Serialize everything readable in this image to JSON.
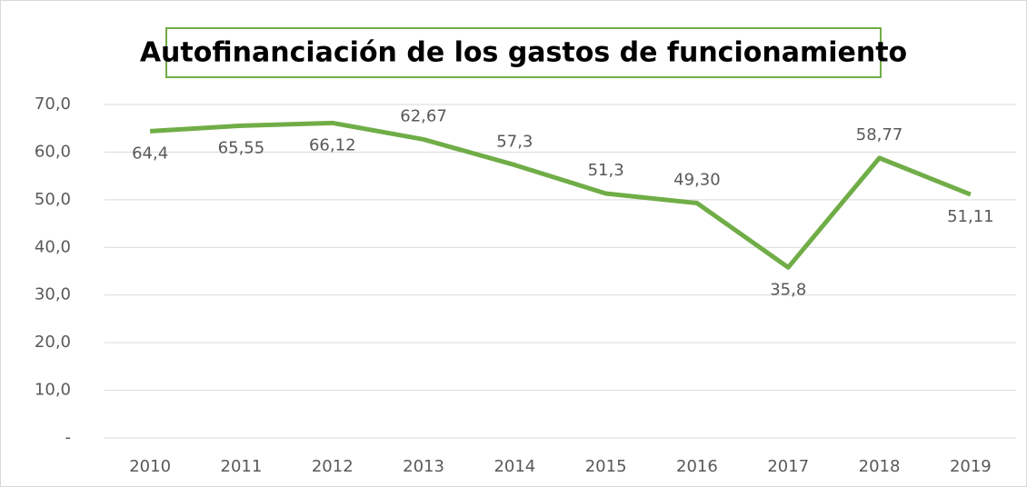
{
  "chart_data": {
    "type": "line",
    "title": "Autofinanciación de los gastos de funcionamiento",
    "categories": [
      "2010",
      "2011",
      "2012",
      "2013",
      "2014",
      "2015",
      "2016",
      "2017",
      "2018",
      "2019"
    ],
    "values": [
      64.4,
      65.55,
      66.12,
      62.67,
      57.3,
      51.3,
      49.3,
      35.8,
      58.77,
      51.11
    ],
    "value_labels": [
      "64,4",
      "65,55",
      "66,12",
      "62,67",
      "57,3",
      "51,3",
      "49,30",
      "35,8",
      "58,77",
      "51,11"
    ],
    "color": "#70ad47",
    "ylim": [
      0,
      70
    ],
    "yticks": [
      {
        "value": 0,
        "label": "-"
      },
      {
        "value": 10,
        "label": "10,0"
      },
      {
        "value": 20,
        "label": "20,0"
      },
      {
        "value": 30,
        "label": "30,0"
      },
      {
        "value": 40,
        "label": "40,0"
      },
      {
        "value": 50,
        "label": "50,0"
      },
      {
        "value": 60,
        "label": "60,0"
      },
      {
        "value": 70,
        "label": "70,0"
      }
    ],
    "grid": true
  }
}
